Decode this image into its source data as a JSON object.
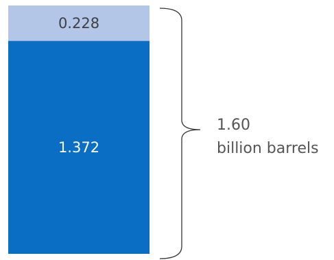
{
  "chart_data": {
    "type": "bar",
    "stacked": true,
    "orientation": "vertical",
    "series": [
      {
        "label": "1.372",
        "value": 1.372,
        "color": "#0A6EC4"
      },
      {
        "label": "0.228",
        "value": 0.228,
        "color": "#B3C6E7"
      }
    ],
    "total": {
      "value": 1.6,
      "value_label": "1.60",
      "unit_label": "billion barrels"
    },
    "label_colors": {
      "on_dark": "#FFFFFF",
      "on_light": "#404040"
    },
    "brace_color": "#333333"
  }
}
